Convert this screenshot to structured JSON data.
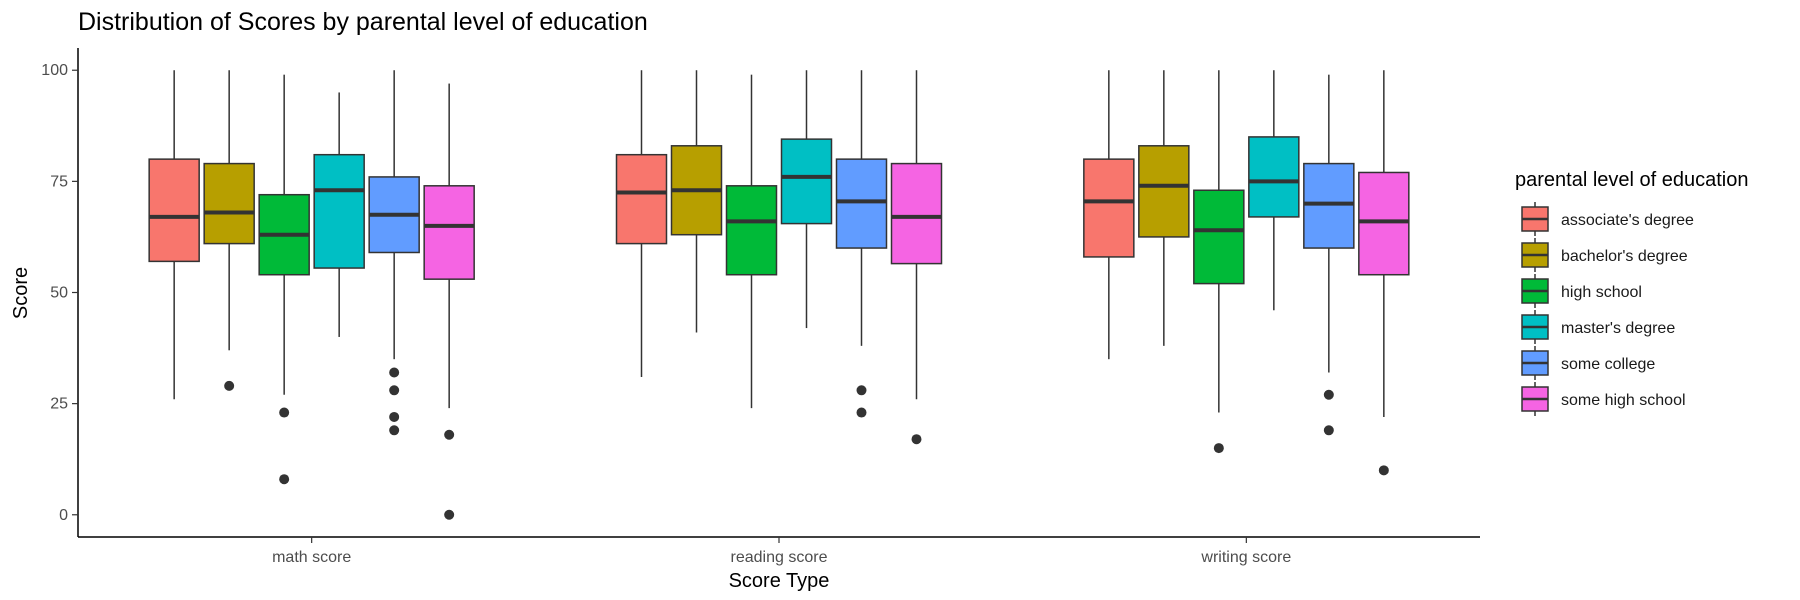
{
  "chart_data": {
    "type": "box",
    "title": "Distribution of Scores by parental level of education",
    "xlabel": "Score Type",
    "ylabel": "Score",
    "ylim": [
      -5,
      105
    ],
    "yticks": [
      0,
      25,
      50,
      75,
      100
    ],
    "categories": [
      "math score",
      "reading score",
      "writing score"
    ],
    "grid": false,
    "legend": {
      "title": "parental level of education",
      "placement": "right"
    },
    "series": [
      {
        "name": "associate's degree",
        "color": "#F8766D",
        "boxes": [
          {
            "min": 26,
            "q1": 57,
            "median": 67,
            "q3": 80,
            "max": 100,
            "outliers": []
          },
          {
            "min": 31,
            "q1": 61,
            "median": 72.5,
            "q3": 81,
            "max": 100,
            "outliers": []
          },
          {
            "min": 35,
            "q1": 58,
            "median": 70.5,
            "q3": 80,
            "max": 100,
            "outliers": []
          }
        ]
      },
      {
        "name": "bachelor's degree",
        "color": "#B79F00",
        "boxes": [
          {
            "min": 37,
            "q1": 61,
            "median": 68,
            "q3": 79,
            "max": 100,
            "outliers": [
              29
            ]
          },
          {
            "min": 41,
            "q1": 63,
            "median": 73,
            "q3": 83,
            "max": 100,
            "outliers": []
          },
          {
            "min": 38,
            "q1": 62.5,
            "median": 74,
            "q3": 83,
            "max": 100,
            "outliers": []
          }
        ]
      },
      {
        "name": "high school",
        "color": "#00BA38",
        "boxes": [
          {
            "min": 27,
            "q1": 54,
            "median": 63,
            "q3": 72,
            "max": 99,
            "outliers": [
              23,
              8
            ]
          },
          {
            "min": 24,
            "q1": 54,
            "median": 66,
            "q3": 74,
            "max": 99,
            "outliers": []
          },
          {
            "min": 23,
            "q1": 52,
            "median": 64,
            "q3": 73,
            "max": 100,
            "outliers": [
              15
            ]
          }
        ]
      },
      {
        "name": "master's degree",
        "color": "#00BFC4",
        "boxes": [
          {
            "min": 40,
            "q1": 55.5,
            "median": 73,
            "q3": 81,
            "max": 95,
            "outliers": []
          },
          {
            "min": 42,
            "q1": 65.5,
            "median": 76,
            "q3": 84.5,
            "max": 100,
            "outliers": []
          },
          {
            "min": 46,
            "q1": 67,
            "median": 75,
            "q3": 85,
            "max": 100,
            "outliers": []
          }
        ]
      },
      {
        "name": "some college",
        "color": "#619CFF",
        "boxes": [
          {
            "min": 35,
            "q1": 59,
            "median": 67.5,
            "q3": 76,
            "max": 100,
            "outliers": [
              32,
              28,
              22,
              19
            ]
          },
          {
            "min": 38,
            "q1": 60,
            "median": 70.5,
            "q3": 80,
            "max": 100,
            "outliers": [
              28,
              23
            ]
          },
          {
            "min": 32,
            "q1": 60,
            "median": 70,
            "q3": 79,
            "max": 99,
            "outliers": [
              27,
              19
            ]
          }
        ]
      },
      {
        "name": "some high school",
        "color": "#F564E3",
        "boxes": [
          {
            "min": 24,
            "q1": 53,
            "median": 65,
            "q3": 74,
            "max": 97,
            "outliers": [
              18,
              0
            ]
          },
          {
            "min": 26,
            "q1": 56.5,
            "median": 67,
            "q3": 79,
            "max": 100,
            "outliers": [
              17
            ]
          },
          {
            "min": 22,
            "q1": 54,
            "median": 66,
            "q3": 77,
            "max": 100,
            "outliers": [
              10
            ]
          }
        ]
      }
    ]
  }
}
